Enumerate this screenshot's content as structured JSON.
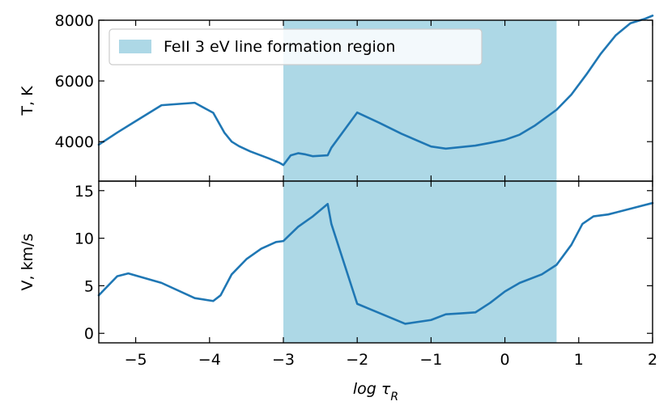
{
  "chart_data": [
    {
      "type": "line",
      "panel": "top",
      "ylabel": "T, K",
      "xlim": [
        -5.5,
        2
      ],
      "ylim": [
        2700,
        8000
      ],
      "yticks": [
        4000,
        6000,
        8000
      ],
      "ytick_labels": [
        "4000",
        "6000",
        "8000"
      ],
      "xticks": [
        -5,
        -4,
        -3,
        -2,
        -1,
        0,
        1,
        2
      ],
      "grid": false,
      "legend_position": "top-left",
      "shaded_region": {
        "x0": -3.0,
        "x1": 0.7,
        "label": "FeII 3 eV line formation region",
        "color": "#add8e6"
      },
      "series": [
        {
          "color": "#1f77b4",
          "x": [
            -5.5,
            -5.25,
            -5.05,
            -4.65,
            -4.2,
            -3.95,
            -3.8,
            -3.7,
            -3.6,
            -3.45,
            -3.2,
            -3.05,
            -3.0,
            -2.9,
            -2.8,
            -2.7,
            -2.6,
            -2.4,
            -2.35,
            -2.0,
            -1.7,
            -1.4,
            -1.0,
            -0.8,
            -0.6,
            -0.4,
            -0.2,
            0.0,
            0.2,
            0.4,
            0.7,
            0.9,
            1.1,
            1.3,
            1.5,
            1.7,
            1.9,
            2.0
          ],
          "y": [
            3900,
            4300,
            4600,
            5200,
            5280,
            4950,
            4300,
            4000,
            3850,
            3680,
            3450,
            3300,
            3230,
            3550,
            3620,
            3580,
            3520,
            3550,
            3800,
            4960,
            4620,
            4260,
            3840,
            3770,
            3820,
            3870,
            3960,
            4060,
            4230,
            4520,
            5050,
            5550,
            6200,
            6900,
            7500,
            7900,
            8050,
            8150
          ]
        }
      ]
    },
    {
      "type": "line",
      "panel": "bottom",
      "xlabel": "log τ_R",
      "ylabel": "V, km/s",
      "xlim": [
        -5.5,
        2
      ],
      "ylim": [
        -1,
        16
      ],
      "yticks": [
        0,
        5,
        10,
        15
      ],
      "ytick_labels": [
        "0",
        "5",
        "10",
        "15"
      ],
      "xticks": [
        -5,
        -4,
        -3,
        -2,
        -1,
        0,
        1,
        2
      ],
      "xtick_labels": [
        "−5",
        "−4",
        "−3",
        "−2",
        "−1",
        "0",
        "1",
        "2"
      ],
      "grid": false,
      "shaded_region": {
        "x0": -3.0,
        "x1": 0.7,
        "color": "#add8e6"
      },
      "series": [
        {
          "color": "#1f77b4",
          "x": [
            -5.5,
            -5.25,
            -5.1,
            -4.65,
            -4.2,
            -3.95,
            -3.85,
            -3.7,
            -3.5,
            -3.3,
            -3.1,
            -3.0,
            -2.8,
            -2.6,
            -2.4,
            -2.35,
            -2.0,
            -1.35,
            -1.0,
            -0.8,
            -0.6,
            -0.4,
            -0.2,
            0.0,
            0.2,
            0.5,
            0.7,
            0.9,
            1.05,
            1.2,
            1.4,
            2.0
          ],
          "y": [
            4,
            6.0,
            6.3,
            5.3,
            3.7,
            3.4,
            4.0,
            6.2,
            7.8,
            8.9,
            9.6,
            9.7,
            11.2,
            12.3,
            13.6,
            11.5,
            3.1,
            1.0,
            1.4,
            2.0,
            2.1,
            2.2,
            3.2,
            4.4,
            5.3,
            6.2,
            7.2,
            9.3,
            11.5,
            12.3,
            12.5,
            13.7
          ]
        }
      ]
    }
  ]
}
